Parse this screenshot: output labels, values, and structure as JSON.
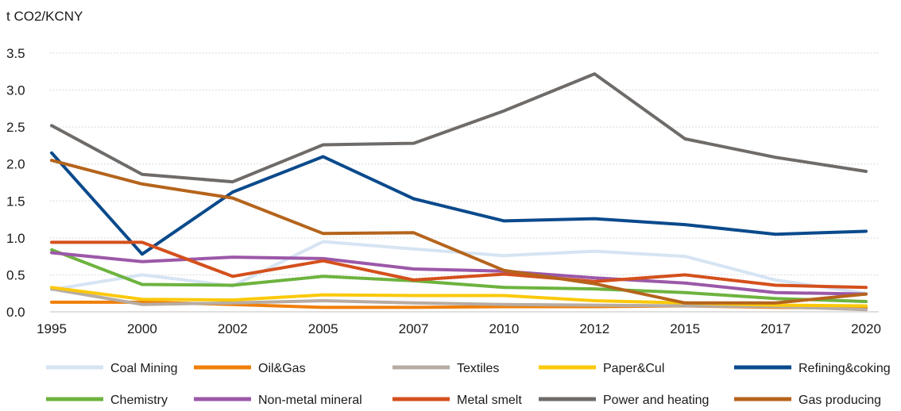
{
  "chart_data": {
    "type": "line",
    "ylabel": "t CO2/KCNY",
    "title": "",
    "xlabel": "",
    "categories": [
      "1995",
      "2000",
      "2002",
      "2005",
      "2007",
      "2010",
      "2012",
      "2015",
      "2017",
      "2020"
    ],
    "ylim": [
      0,
      3.5
    ],
    "yticks": [
      "0.0",
      "0.5",
      "1.0",
      "1.5",
      "2.0",
      "2.5",
      "3.0",
      "3.5"
    ],
    "grid": true,
    "legend_position": "bottom",
    "series": [
      {
        "name": "Coal Mining",
        "color": "#d6e4f3",
        "values": [
          0.3,
          0.5,
          0.35,
          0.95,
          0.85,
          0.76,
          0.82,
          0.75,
          0.43,
          0.25
        ]
      },
      {
        "name": "Oil&Gas",
        "color": "#f07f09",
        "values": [
          0.13,
          0.13,
          0.1,
          0.06,
          0.06,
          0.07,
          0.07,
          0.08,
          0.06,
          0.05
        ]
      },
      {
        "name": "Textiles",
        "color": "#b7aca3",
        "values": [
          0.31,
          0.1,
          0.12,
          0.15,
          0.12,
          0.1,
          0.09,
          0.08,
          0.07,
          0.03
        ]
      },
      {
        "name": "Paper&Cul",
        "color": "#fbc90a",
        "values": [
          0.33,
          0.17,
          0.16,
          0.23,
          0.22,
          0.22,
          0.15,
          0.12,
          0.09,
          0.08
        ]
      },
      {
        "name": "Refining&coking",
        "color": "#0a4a8c",
        "values": [
          2.15,
          0.78,
          1.62,
          2.1,
          1.53,
          1.23,
          1.26,
          1.18,
          1.05,
          1.09
        ]
      },
      {
        "name": "Chemistry",
        "color": "#6db33f",
        "values": [
          0.84,
          0.37,
          0.36,
          0.48,
          0.42,
          0.33,
          0.31,
          0.26,
          0.18,
          0.14
        ]
      },
      {
        "name": "Non-metal mineral",
        "color": "#9b58a8",
        "values": [
          0.8,
          0.68,
          0.74,
          0.72,
          0.58,
          0.55,
          0.46,
          0.39,
          0.26,
          0.24
        ]
      },
      {
        "name": "Metal smelt",
        "color": "#d4501c",
        "values": [
          0.94,
          0.94,
          0.48,
          0.69,
          0.43,
          0.51,
          0.41,
          0.5,
          0.36,
          0.33
        ]
      },
      {
        "name": "Power and heating",
        "color": "#6e6b69",
        "values": [
          2.52,
          1.86,
          1.76,
          2.26,
          2.28,
          2.72,
          3.22,
          2.34,
          2.09,
          1.9
        ]
      },
      {
        "name": "Gas producing",
        "color": "#b5641c",
        "values": [
          2.05,
          1.73,
          1.54,
          1.06,
          1.07,
          0.56,
          0.38,
          0.12,
          0.12,
          0.24
        ]
      }
    ]
  }
}
